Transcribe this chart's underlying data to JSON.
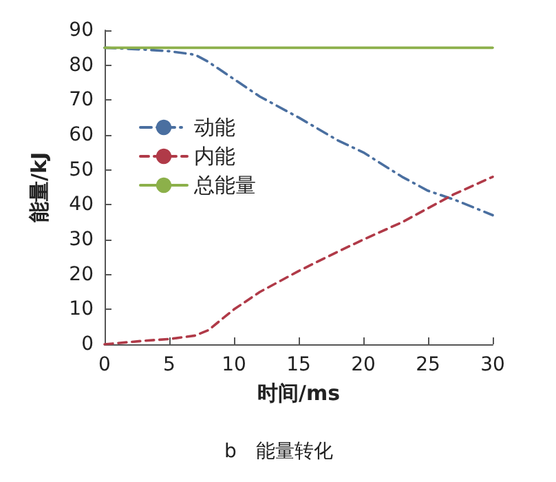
{
  "chart_data": {
    "type": "line",
    "title": "b　能量转化",
    "xlabel": "时间/ms",
    "ylabel": "能量/kJ",
    "xlim": [
      0,
      30
    ],
    "xticks": [
      0,
      5,
      10,
      15,
      20,
      25,
      30
    ],
    "ylim": [
      0,
      90
    ],
    "yticks": [
      0,
      10,
      20,
      30,
      40,
      50,
      60,
      70,
      80,
      90
    ],
    "grid": false,
    "legend": "top left",
    "marker": "none",
    "series": [
      {
        "name": "动能",
        "color": "#4a6fa0",
        "line_style": "dashdot",
        "x": [
          0,
          3,
          5,
          7,
          8,
          10,
          12,
          15,
          18,
          20,
          23,
          25,
          27,
          30
        ],
        "values": [
          85,
          84.5,
          84,
          83,
          81,
          76,
          71,
          65,
          58.5,
          55,
          48,
          44,
          41.5,
          37
        ]
      },
      {
        "name": "内能",
        "color": "#b03a48",
        "line_style": "dashed",
        "x": [
          0,
          3,
          5,
          7,
          8,
          10,
          12,
          15,
          18,
          20,
          23,
          25,
          27,
          30
        ],
        "values": [
          0,
          1,
          1.5,
          2.5,
          4,
          10,
          15,
          21,
          26.5,
          30,
          35,
          39,
          43,
          48
        ]
      },
      {
        "name": "总能量",
        "color": "#8cb04a",
        "line_style": "solid",
        "x": [
          0,
          30
        ],
        "values": [
          85,
          85
        ]
      }
    ]
  }
}
